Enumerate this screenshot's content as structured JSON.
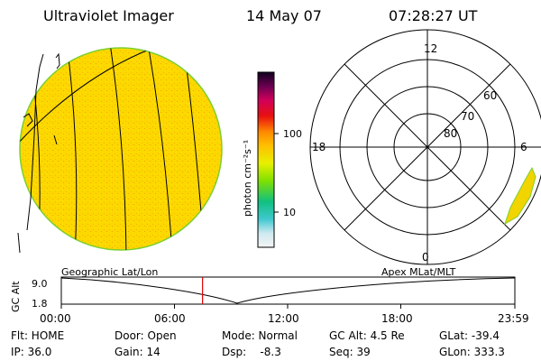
{
  "header": {
    "title": "Ultraviolet Imager",
    "date": "14 May 07",
    "time": "07:28:27 UT"
  },
  "colorbar": {
    "unit_label": "photon cm⁻²s⁻¹",
    "ticks": [
      "100",
      "10"
    ]
  },
  "polar_plot": {
    "mlt_labels": [
      "12",
      "18",
      "6",
      "0"
    ],
    "lat_labels": [
      "60",
      "70",
      "80"
    ]
  },
  "timeline": {
    "axis_label": "GC Alt",
    "left_title": "Geographic Lat/Lon",
    "right_title": "Apex  MLat/MLT",
    "y_ticks": [
      "9.0",
      "1.8"
    ],
    "time_ticks": [
      "00:00",
      "06:00",
      "12:00",
      "18:00",
      "23:59"
    ],
    "current_time_fraction": 0.3114
  },
  "status": {
    "filter": "Flt: HOME",
    "ip": "IP: 36.0",
    "door": "Door: Open",
    "gain": "Gain: 14",
    "mode": "Mode: Normal",
    "dsp": "Dsp:    -8.3",
    "gc_alt": "GC Alt: 4.5 Re",
    "seq": "Seq: 39",
    "glat": "GLat: -39.4",
    "glon": "GLon: 333.3"
  }
}
